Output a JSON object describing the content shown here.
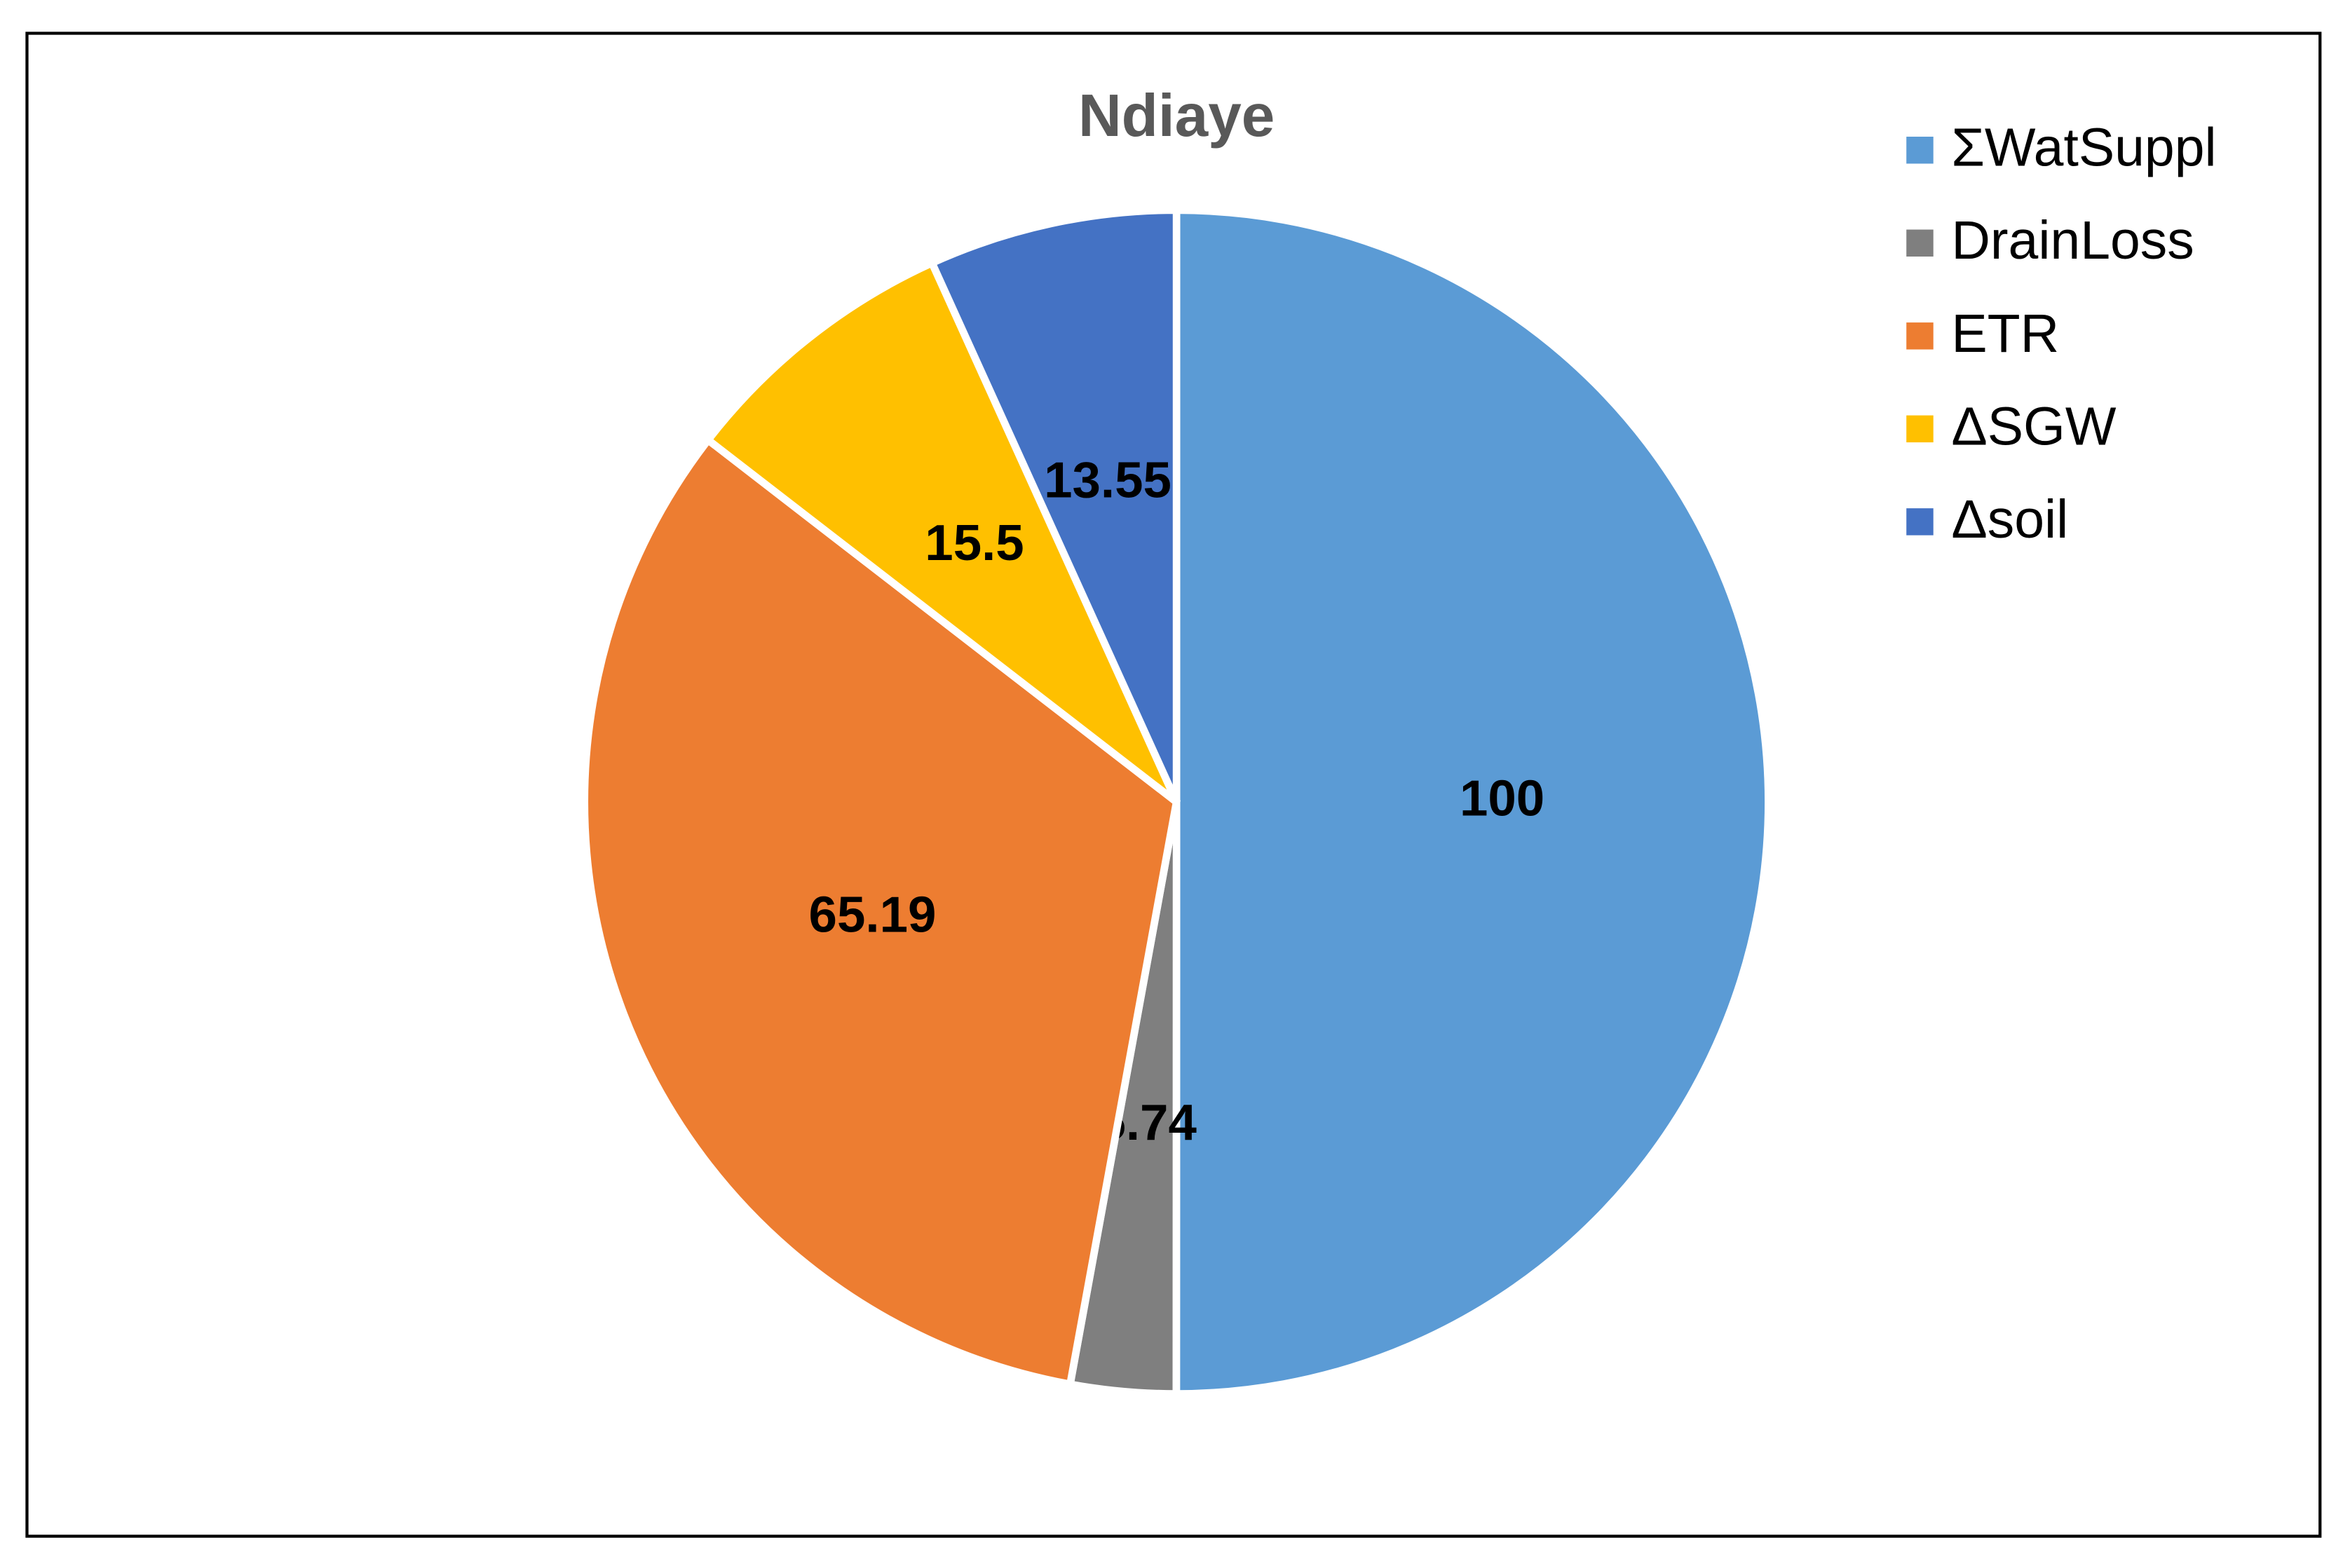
{
  "chart_data": {
    "type": "pie",
    "title": "Ndiaye",
    "categories": [
      "ΣWatSuppl",
      "DrainLoss",
      "ETR",
      "ΔSGW",
      "Δsoil"
    ],
    "values": [
      100,
      5.74,
      65.19,
      15.5,
      13.55
    ],
    "colors": [
      "#5b9bd5",
      "#7f7f7f",
      "#ed7d31",
      "#ffc000",
      "#4472c4"
    ],
    "legend": "right"
  }
}
